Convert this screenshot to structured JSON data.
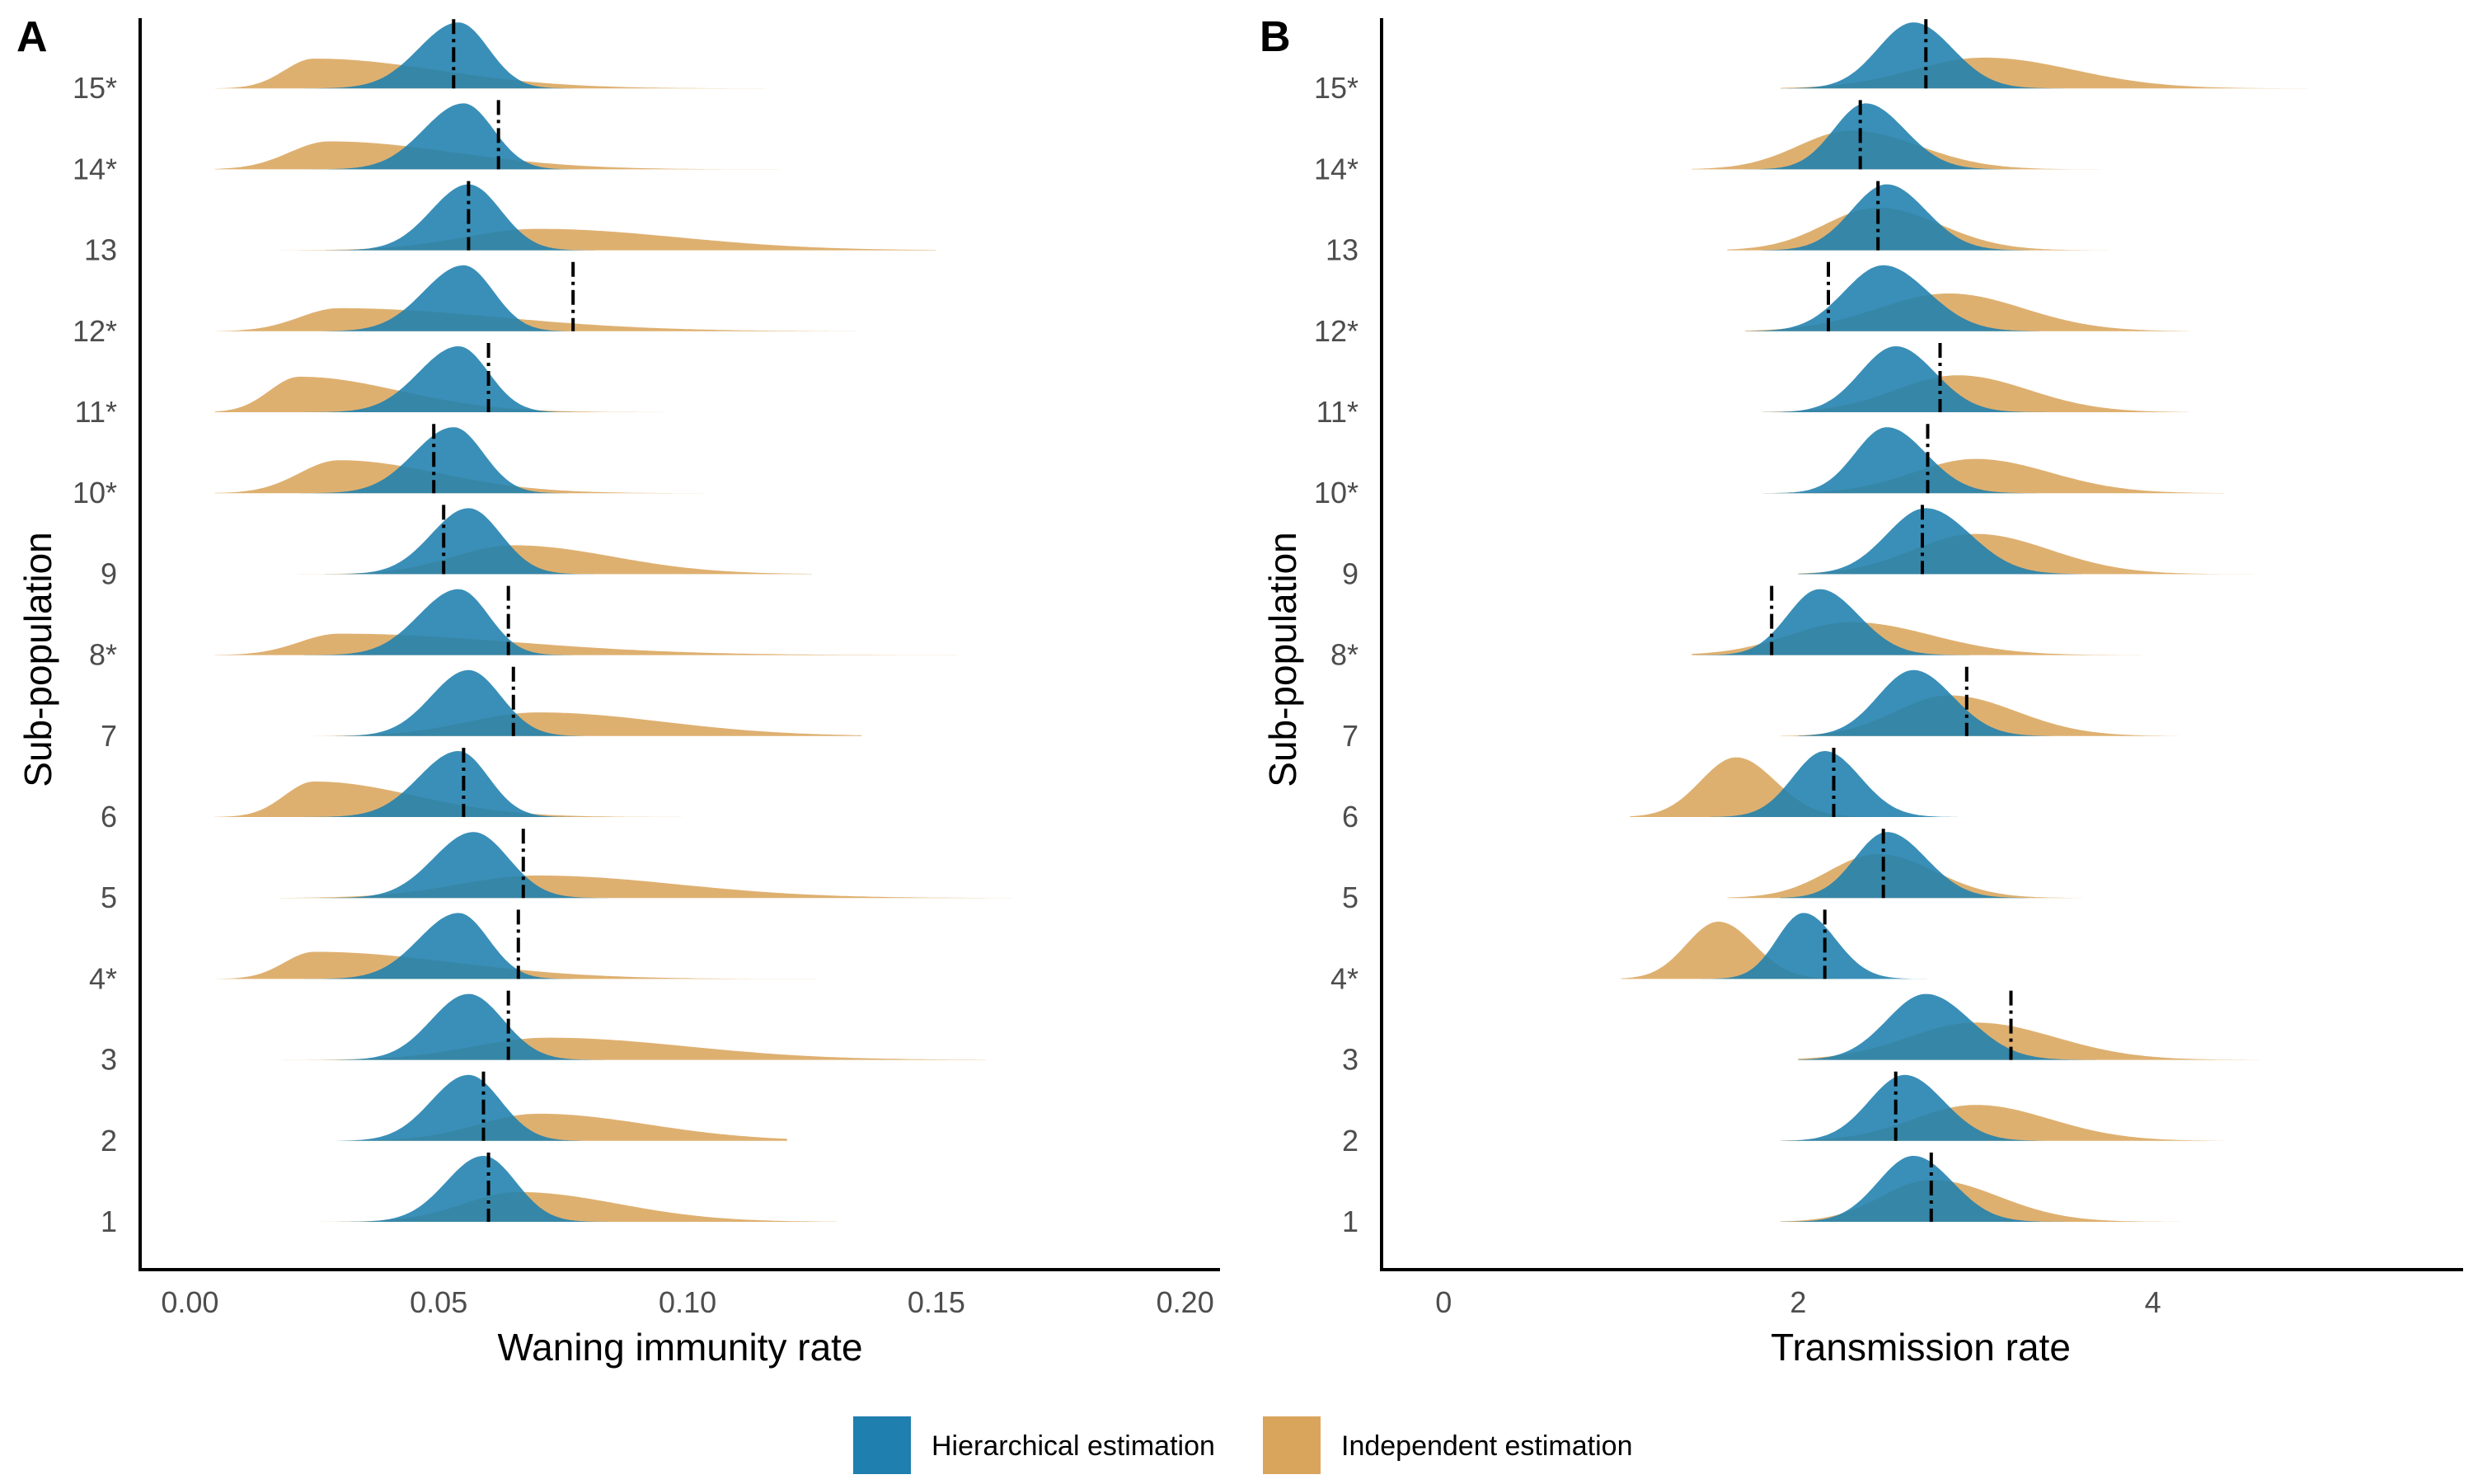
{
  "chart_data": [
    {
      "panel": "A",
      "type": "ridgeline",
      "xlabel": "Waning immunity rate",
      "ylabel": "Sub-population",
      "xlim": [
        -0.01,
        0.207
      ],
      "xticks": [
        0.0,
        0.05,
        0.1,
        0.15,
        0.2
      ],
      "xtick_labels": [
        "0.00",
        "0.05",
        "0.10",
        "0.15",
        "0.20"
      ],
      "categories": [
        "1",
        "2",
        "3",
        "4*",
        "5",
        "6",
        "7",
        "8*",
        "9",
        "10*",
        "11*",
        "12*",
        "13",
        "14*",
        "15*"
      ],
      "series": [
        {
          "name": "Hierarchical estimation",
          "color": "#1f7fae",
          "distributions": [
            {
              "mode": 0.059,
              "sd_left": 0.0075,
              "sd_right": 0.0065,
              "range": [
                0.018,
                0.085
              ]
            },
            {
              "mode": 0.056,
              "sd_left": 0.0075,
              "sd_right": 0.0065,
              "range": [
                0.018,
                0.085
              ]
            },
            {
              "mode": 0.056,
              "sd_left": 0.0075,
              "sd_right": 0.007,
              "range": [
                0.018,
                0.088
              ]
            },
            {
              "mode": 0.054,
              "sd_left": 0.008,
              "sd_right": 0.006,
              "range": [
                0.005,
                0.08
              ]
            },
            {
              "mode": 0.057,
              "sd_left": 0.008,
              "sd_right": 0.007,
              "range": [
                0.018,
                0.09
              ]
            },
            {
              "mode": 0.054,
              "sd_left": 0.008,
              "sd_right": 0.006,
              "range": [
                0.005,
                0.08
              ]
            },
            {
              "mode": 0.056,
              "sd_left": 0.0075,
              "sd_right": 0.0065,
              "range": [
                0.018,
                0.087
              ]
            },
            {
              "mode": 0.054,
              "sd_left": 0.008,
              "sd_right": 0.006,
              "range": [
                0.005,
                0.08
              ]
            },
            {
              "mode": 0.056,
              "sd_left": 0.0075,
              "sd_right": 0.0065,
              "range": [
                0.018,
                0.087
              ]
            },
            {
              "mode": 0.053,
              "sd_left": 0.008,
              "sd_right": 0.006,
              "range": [
                0.005,
                0.078
              ]
            },
            {
              "mode": 0.054,
              "sd_left": 0.008,
              "sd_right": 0.006,
              "range": [
                0.005,
                0.08
              ]
            },
            {
              "mode": 0.055,
              "sd_left": 0.008,
              "sd_right": 0.006,
              "range": [
                0.005,
                0.08
              ]
            },
            {
              "mode": 0.056,
              "sd_left": 0.0075,
              "sd_right": 0.0065,
              "range": [
                0.018,
                0.087
              ]
            },
            {
              "mode": 0.055,
              "sd_left": 0.008,
              "sd_right": 0.006,
              "range": [
                0.005,
                0.08
              ]
            },
            {
              "mode": 0.054,
              "sd_left": 0.008,
              "sd_right": 0.006,
              "range": [
                0.005,
                0.08
              ]
            }
          ]
        },
        {
          "name": "Independent estimation",
          "color": "#d9a55c",
          "distributions": [
            {
              "mode": 0.066,
              "sd_left": 0.011,
              "sd_right": 0.02,
              "range": [
                0.018,
                0.13
              ]
            },
            {
              "mode": 0.07,
              "sd_left": 0.012,
              "sd_right": 0.022,
              "range": [
                0.018,
                0.12
              ]
            },
            {
              "mode": 0.072,
              "sd_left": 0.015,
              "sd_right": 0.028,
              "range": [
                0.018,
                0.16
              ]
            },
            {
              "mode": 0.025,
              "sd_left": 0.006,
              "sd_right": 0.028,
              "range": [
                0.005,
                0.14
              ]
            },
            {
              "mode": 0.07,
              "sd_left": 0.016,
              "sd_right": 0.028,
              "range": [
                0.018,
                0.165
              ]
            },
            {
              "mode": 0.025,
              "sd_left": 0.006,
              "sd_right": 0.02,
              "range": [
                0.005,
                0.12
              ]
            },
            {
              "mode": 0.07,
              "sd_left": 0.014,
              "sd_right": 0.025,
              "range": [
                0.018,
                0.135
              ]
            },
            {
              "mode": 0.03,
              "sd_left": 0.008,
              "sd_right": 0.035,
              "range": [
                0.005,
                0.2
              ]
            },
            {
              "mode": 0.065,
              "sd_left": 0.012,
              "sd_right": 0.02,
              "range": [
                0.018,
                0.125
              ]
            },
            {
              "mode": 0.03,
              "sd_left": 0.008,
              "sd_right": 0.02,
              "range": [
                0.005,
                0.11
              ]
            },
            {
              "mode": 0.022,
              "sd_left": 0.006,
              "sd_right": 0.02,
              "range": [
                0.005,
                0.12
              ]
            },
            {
              "mode": 0.03,
              "sd_left": 0.008,
              "sd_right": 0.032,
              "range": [
                0.005,
                0.155
              ]
            },
            {
              "mode": 0.07,
              "sd_left": 0.015,
              "sd_right": 0.028,
              "range": [
                0.018,
                0.15
              ]
            },
            {
              "mode": 0.028,
              "sd_left": 0.008,
              "sd_right": 0.025,
              "range": [
                0.005,
                0.14
              ]
            },
            {
              "mode": 0.025,
              "sd_left": 0.006,
              "sd_right": 0.025,
              "range": [
                0.005,
                0.13
              ]
            }
          ]
        }
      ],
      "medians": [
        0.06,
        0.059,
        0.064,
        0.066,
        0.067,
        0.055,
        0.065,
        0.064,
        0.051,
        0.049,
        0.06,
        0.077,
        0.056,
        0.062,
        0.053
      ]
    },
    {
      "panel": "B",
      "type": "ridgeline",
      "xlabel": "Transmission rate",
      "ylabel": "Sub-population",
      "xlim": [
        -0.35,
        5.75
      ],
      "xticks": [
        0,
        2,
        4
      ],
      "xtick_labels": [
        "0",
        "2",
        "4"
      ],
      "categories": [
        "1",
        "2",
        "3",
        "4*",
        "5",
        "6",
        "7",
        "8*",
        "9",
        "10*",
        "11*",
        "12*",
        "13",
        "14*",
        "15*"
      ],
      "series": [
        {
          "name": "Hierarchical estimation",
          "color": "#1f7fae",
          "distributions": [
            {
              "mode": 2.65,
              "sd_left": 0.2,
              "sd_right": 0.22,
              "range": [
                1.9,
                3.6
              ]
            },
            {
              "mode": 2.6,
              "sd_left": 0.2,
              "sd_right": 0.22,
              "range": [
                1.9,
                3.6
              ]
            },
            {
              "mode": 2.72,
              "sd_left": 0.22,
              "sd_right": 0.25,
              "range": [
                2.0,
                3.8
              ]
            },
            {
              "mode": 2.03,
              "sd_left": 0.15,
              "sd_right": 0.18,
              "range": [
                1.4,
                2.8
              ]
            },
            {
              "mode": 2.5,
              "sd_left": 0.18,
              "sd_right": 0.22,
              "range": [
                1.9,
                3.3
              ]
            },
            {
              "mode": 2.15,
              "sd_left": 0.18,
              "sd_right": 0.2,
              "range": [
                1.5,
                2.9
              ]
            },
            {
              "mode": 2.65,
              "sd_left": 0.2,
              "sd_right": 0.22,
              "range": [
                2.0,
                3.5
              ]
            },
            {
              "mode": 2.12,
              "sd_left": 0.18,
              "sd_right": 0.22,
              "range": [
                1.4,
                3.0
              ]
            },
            {
              "mode": 2.72,
              "sd_left": 0.22,
              "sd_right": 0.25,
              "range": [
                2.0,
                3.6
              ]
            },
            {
              "mode": 2.5,
              "sd_left": 0.18,
              "sd_right": 0.22,
              "range": [
                1.8,
                3.4
              ]
            },
            {
              "mode": 2.55,
              "sd_left": 0.2,
              "sd_right": 0.22,
              "range": [
                1.8,
                3.4
              ]
            },
            {
              "mode": 2.48,
              "sd_left": 0.22,
              "sd_right": 0.25,
              "range": [
                1.7,
                3.4
              ]
            },
            {
              "mode": 2.5,
              "sd_left": 0.2,
              "sd_right": 0.22,
              "range": [
                1.8,
                3.3
              ]
            },
            {
              "mode": 2.38,
              "sd_left": 0.18,
              "sd_right": 0.22,
              "range": [
                1.7,
                3.2
              ]
            },
            {
              "mode": 2.65,
              "sd_left": 0.2,
              "sd_right": 0.22,
              "range": [
                1.9,
                3.5
              ]
            }
          ]
        },
        {
          "name": "Independent estimation",
          "color": "#d9a55c",
          "distributions": [
            {
              "mode": 2.75,
              "sd_left": 0.28,
              "sd_right": 0.38,
              "range": [
                1.9,
                4.2
              ]
            },
            {
              "mode": 3.0,
              "sd_left": 0.35,
              "sd_right": 0.42,
              "range": [
                1.9,
                4.4
              ]
            },
            {
              "mode": 3.0,
              "sd_left": 0.38,
              "sd_right": 0.45,
              "range": [
                2.0,
                4.6
              ]
            },
            {
              "mode": 1.55,
              "sd_left": 0.18,
              "sd_right": 0.2,
              "range": [
                1.0,
                2.4
              ]
            },
            {
              "mode": 2.45,
              "sd_left": 0.28,
              "sd_right": 0.32,
              "range": [
                1.6,
                3.6
              ]
            },
            {
              "mode": 1.65,
              "sd_left": 0.2,
              "sd_right": 0.22,
              "range": [
                1.05,
                2.5
              ]
            },
            {
              "mode": 2.85,
              "sd_left": 0.3,
              "sd_right": 0.38,
              "range": [
                1.9,
                4.3
              ]
            },
            {
              "mode": 2.3,
              "sd_left": 0.35,
              "sd_right": 0.45,
              "range": [
                1.4,
                4.1
              ]
            },
            {
              "mode": 3.0,
              "sd_left": 0.35,
              "sd_right": 0.42,
              "range": [
                2.0,
                4.9
              ]
            },
            {
              "mode": 3.0,
              "sd_left": 0.35,
              "sd_right": 0.42,
              "range": [
                1.8,
                4.4
              ]
            },
            {
              "mode": 2.9,
              "sd_left": 0.35,
              "sd_right": 0.4,
              "range": [
                1.8,
                4.2
              ]
            },
            {
              "mode": 2.85,
              "sd_left": 0.4,
              "sd_right": 0.42,
              "range": [
                1.7,
                4.2
              ]
            },
            {
              "mode": 2.45,
              "sd_left": 0.3,
              "sd_right": 0.35,
              "range": [
                1.6,
                3.8
              ]
            },
            {
              "mode": 2.3,
              "sd_left": 0.3,
              "sd_right": 0.38,
              "range": [
                1.4,
                3.8
              ]
            },
            {
              "mode": 3.05,
              "sd_left": 0.4,
              "sd_right": 0.5,
              "range": [
                1.9,
                5.1
              ]
            }
          ]
        }
      ],
      "medians": [
        2.75,
        2.55,
        3.2,
        2.15,
        2.48,
        2.2,
        2.95,
        1.85,
        2.7,
        2.73,
        2.8,
        2.17,
        2.45,
        2.35,
        2.72
      ]
    }
  ],
  "legend": {
    "items": [
      {
        "label": "Hierarchical estimation",
        "color": "#1f7fae"
      },
      {
        "label": "Independent estimation",
        "color": "#d9a55c"
      }
    ],
    "placement": "bottom"
  }
}
